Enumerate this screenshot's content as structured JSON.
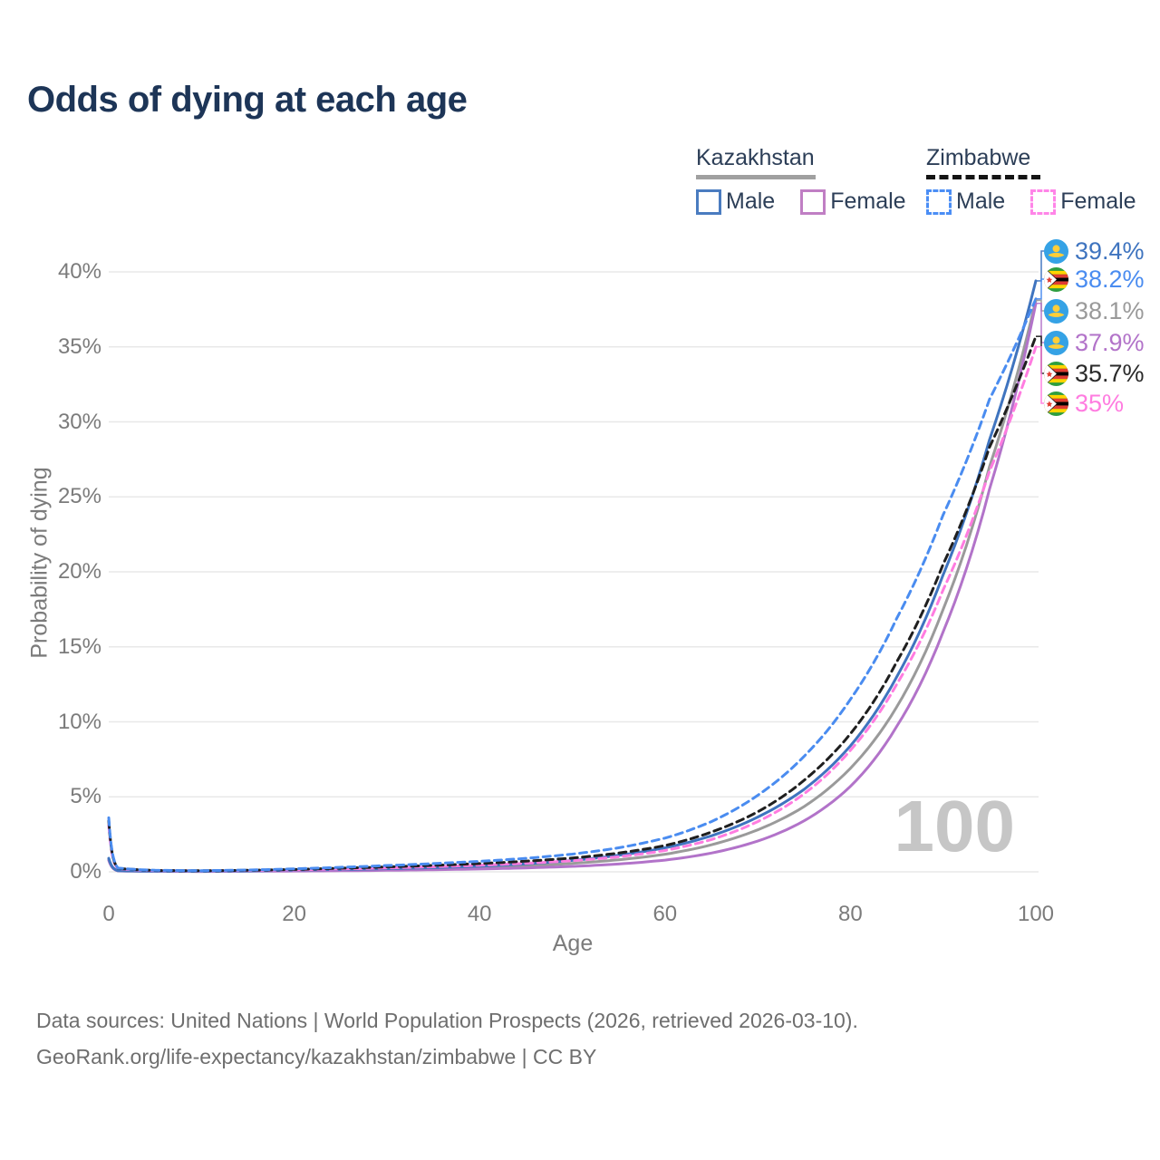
{
  "title": "Odds of dying at each age",
  "legend": {
    "groups": [
      {
        "id": "kazakhstan",
        "name": "Kazakhstan",
        "line_style": "solid",
        "line_color": "#a0a0a0",
        "items": [
          {
            "label": "Male",
            "box_color": "#4a7cc0",
            "box_style": "solid"
          },
          {
            "label": "Female",
            "box_color": "#c07fc4",
            "box_style": "solid"
          }
        ]
      },
      {
        "id": "zimbabwe",
        "name": "Zimbabwe",
        "line_style": "dashed",
        "line_color": "#141414",
        "items": [
          {
            "label": "Male",
            "box_color": "#4b8ef5",
            "box_style": "dashed"
          },
          {
            "label": "Female",
            "box_color": "#ff85e8",
            "box_style": "dashed"
          }
        ]
      }
    ]
  },
  "axes": {
    "x_title": "Age",
    "y_title": "Probability of dying",
    "x_ticks": [
      "0",
      "20",
      "40",
      "60",
      "80",
      "100"
    ],
    "y_ticks": [
      "0%",
      "5%",
      "10%",
      "15%",
      "20%",
      "25%",
      "30%",
      "35%",
      "40%"
    ]
  },
  "watermark": "100",
  "end_labels": [
    {
      "series": "kz_male",
      "flag": "kz",
      "text": "39.4%",
      "color": "#3f74bf"
    },
    {
      "series": "zw_male",
      "flag": "zw",
      "text": "38.2%",
      "color": "#4a8cf0"
    },
    {
      "series": "kz_total",
      "flag": "kz",
      "text": "38.1%",
      "color": "#9a9a9a"
    },
    {
      "series": "kz_female",
      "flag": "kz",
      "text": "37.9%",
      "color": "#b273c9"
    },
    {
      "series": "zw_total",
      "flag": "zw",
      "text": "35.7%",
      "color": "#2a2a2a"
    },
    {
      "series": "zw_female",
      "flag": "zw",
      "text": "35%",
      "color": "#ff7ce0"
    }
  ],
  "footer": {
    "line1": "Data sources: United Nations | World Population Prospects (2026, retrieved 2026-03-10).",
    "line2": "GeoRank.org/life-expectancy/kazakhstan/zimbabwe | CC BY"
  },
  "chart_data": {
    "type": "line",
    "title": "Odds of dying at each age",
    "xlabel": "Age",
    "ylabel": "Probability of dying",
    "units": "percent",
    "xlim": [
      0,
      100
    ],
    "ylim": [
      0,
      40
    ],
    "grid": "horizontal",
    "legend_position": "top-right",
    "ages": [
      0,
      1,
      5,
      10,
      15,
      20,
      25,
      30,
      35,
      40,
      45,
      50,
      55,
      60,
      65,
      70,
      75,
      80,
      85,
      90,
      95,
      100
    ],
    "series": [
      {
        "id": "kz_total",
        "name": "Kazakhstan Total",
        "color": "#9a9a9a",
        "dashed": false,
        "end_label": "38.1%",
        "values": [
          0.83,
          0.066,
          0.035,
          0.025,
          0.05,
          0.09,
          0.12,
          0.155,
          0.21,
          0.285,
          0.39,
          0.56,
          0.8,
          1.17,
          1.8,
          2.8,
          4.35,
          6.9,
          11.0,
          17.5,
          27.0,
          38.1
        ]
      },
      {
        "id": "kz_female",
        "name": "Kazakhstan Female",
        "color": "#b273c9",
        "dashed": false,
        "end_label": "37.9%",
        "values": [
          0.76,
          0.06,
          0.03,
          0.022,
          0.04,
          0.052,
          0.07,
          0.1,
          0.14,
          0.19,
          0.26,
          0.36,
          0.52,
          0.78,
          1.25,
          2.05,
          3.4,
          5.7,
          9.7,
          16.0,
          25.5,
          37.9
        ]
      },
      {
        "id": "kz_male",
        "name": "Kazakhstan Male",
        "color": "#3f74bf",
        "dashed": false,
        "end_label": "39.4%",
        "values": [
          0.9,
          0.072,
          0.04,
          0.03,
          0.06,
          0.12,
          0.16,
          0.21,
          0.28,
          0.38,
          0.53,
          0.76,
          1.1,
          1.6,
          2.4,
          3.65,
          5.5,
          8.4,
          13.0,
          19.8,
          28.8,
          39.4
        ]
      },
      {
        "id": "zw_female",
        "name": "Zimbabwe Female",
        "color": "#ff7ce0",
        "dashed": true,
        "end_label": "35%",
        "values": [
          3.1,
          0.21,
          0.08,
          0.06,
          0.09,
          0.13,
          0.19,
          0.26,
          0.34,
          0.44,
          0.57,
          0.74,
          1.0,
          1.42,
          2.15,
          3.35,
          5.2,
          8.1,
          12.5,
          18.8,
          26.7,
          35.0
        ]
      },
      {
        "id": "zw_total",
        "name": "Zimbabwe Total",
        "color": "#1f1f1f",
        "dashed": true,
        "end_label": "35.7%",
        "values": [
          3.4,
          0.23,
          0.09,
          0.07,
          0.1,
          0.16,
          0.24,
          0.33,
          0.43,
          0.55,
          0.71,
          0.92,
          1.25,
          1.75,
          2.65,
          4.0,
          6.1,
          9.2,
          14.0,
          20.5,
          28.3,
          35.7
        ]
      },
      {
        "id": "zw_male",
        "name": "Zimbabwe Male",
        "color": "#4a8cf0",
        "dashed": true,
        "end_label": "38.2%",
        "values": [
          3.6,
          0.25,
          0.1,
          0.08,
          0.12,
          0.2,
          0.3,
          0.42,
          0.55,
          0.7,
          0.9,
          1.18,
          1.6,
          2.25,
          3.35,
          5.1,
          7.7,
          11.5,
          16.9,
          23.8,
          31.5,
          38.2
        ]
      }
    ]
  }
}
